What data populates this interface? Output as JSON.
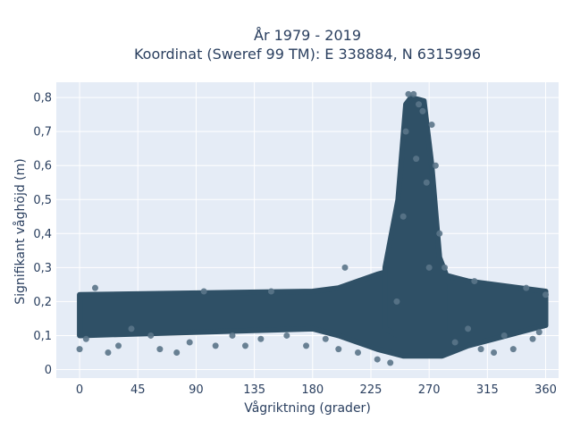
{
  "chart_data": {
    "type": "scatter",
    "title_line1": "År 1979 - 2019",
    "title_line2": "Koordinat (Sweref 99 TM): E 338884, N 6315996",
    "xlabel": "Vågriktning (grader)",
    "ylabel": "Signifikant våghöjd (m)",
    "xlim": [
      -18,
      370
    ],
    "ylim": [
      -0.025,
      0.845
    ],
    "x_ticks": [
      0,
      45,
      90,
      135,
      180,
      225,
      270,
      315,
      360
    ],
    "y_ticks": [
      0,
      0.1,
      0.2,
      0.3,
      0.4,
      0.5,
      0.6,
      0.7,
      0.8
    ],
    "y_tick_labels": [
      "0",
      "0,1",
      "0,2",
      "0,3",
      "0,4",
      "0,5",
      "0,6",
      "0,7",
      "0,8"
    ],
    "grid": true,
    "background": "#e5ecf6",
    "marker_color": "#2f5066",
    "marker_color_light": "#5a7488",
    "points": [
      [
        0,
        0.06
      ],
      [
        5,
        0.09
      ],
      [
        12,
        0.24
      ],
      [
        22,
        0.05
      ],
      [
        30,
        0.07
      ],
      [
        40,
        0.12
      ],
      [
        55,
        0.1
      ],
      [
        62,
        0.06
      ],
      [
        75,
        0.05
      ],
      [
        85,
        0.08
      ],
      [
        96,
        0.23
      ],
      [
        105,
        0.07
      ],
      [
        118,
        0.1
      ],
      [
        128,
        0.07
      ],
      [
        140,
        0.09
      ],
      [
        148,
        0.23
      ],
      [
        160,
        0.1
      ],
      [
        175,
        0.07
      ],
      [
        190,
        0.09
      ],
      [
        200,
        0.06
      ],
      [
        205,
        0.3
      ],
      [
        215,
        0.05
      ],
      [
        230,
        0.03
      ],
      [
        240,
        0.02
      ],
      [
        245,
        0.2
      ],
      [
        250,
        0.45
      ],
      [
        252,
        0.7
      ],
      [
        254,
        0.81
      ],
      [
        258,
        0.81
      ],
      [
        260,
        0.62
      ],
      [
        262,
        0.78
      ],
      [
        265,
        0.76
      ],
      [
        268,
        0.55
      ],
      [
        270,
        0.3
      ],
      [
        272,
        0.72
      ],
      [
        275,
        0.6
      ],
      [
        278,
        0.4
      ],
      [
        282,
        0.3
      ],
      [
        290,
        0.08
      ],
      [
        300,
        0.12
      ],
      [
        305,
        0.26
      ],
      [
        310,
        0.06
      ],
      [
        320,
        0.05
      ],
      [
        328,
        0.1
      ],
      [
        335,
        0.06
      ],
      [
        345,
        0.24
      ],
      [
        350,
        0.09
      ],
      [
        355,
        0.11
      ],
      [
        360,
        0.22
      ]
    ],
    "dense_band": [
      [
        0,
        0.1,
        0.22
      ],
      [
        180,
        0.12,
        0.23
      ],
      [
        200,
        0.1,
        0.24
      ],
      [
        230,
        0.06,
        0.28
      ],
      [
        250,
        0.04,
        0.3
      ],
      [
        280,
        0.04,
        0.28
      ],
      [
        300,
        0.07,
        0.26
      ],
      [
        360,
        0.13,
        0.23
      ]
    ],
    "dense_peak": [
      [
        236,
        0.12,
        0.3
      ],
      [
        246,
        0.1,
        0.5
      ],
      [
        252,
        0.1,
        0.78
      ],
      [
        256,
        0.1,
        0.8
      ],
      [
        266,
        0.1,
        0.79
      ],
      [
        272,
        0.1,
        0.6
      ],
      [
        278,
        0.1,
        0.33
      ],
      [
        286,
        0.1,
        0.25
      ]
    ]
  }
}
